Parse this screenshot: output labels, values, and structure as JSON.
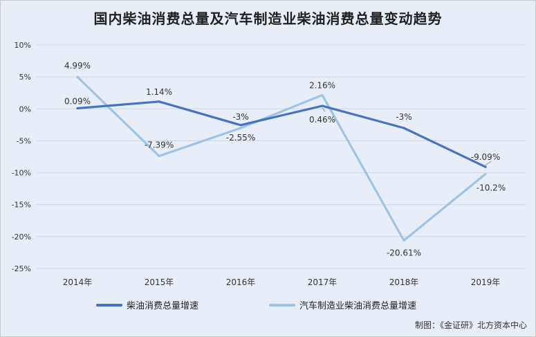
{
  "chart_data": {
    "type": "line",
    "title": "国内柴油消费总量及汽车制造业柴油消费总量变动趋势",
    "categories": [
      "2014年",
      "2015年",
      "2016年",
      "2017年",
      "2018年",
      "2019年"
    ],
    "ylim": [
      -25,
      10
    ],
    "yticks": [
      10,
      5,
      0,
      -5,
      -10,
      -15,
      -20,
      -25
    ],
    "ytick_labels": [
      "10%",
      "5%",
      "0%",
      "-5%",
      "-10%",
      "-15%",
      "-20%",
      "-25%"
    ],
    "grid": true,
    "legend_position": "bottom",
    "series": [
      {
        "name": "柴油消费总量增速",
        "color": "#4472c4",
        "values": [
          0.09,
          1.14,
          -2.55,
          0.46,
          -3.0,
          -9.09
        ],
        "labels": [
          "0.09%",
          "1.14%",
          "-2.55%",
          "0.46%",
          "-3%",
          "-9.09%"
        ]
      },
      {
        "name": "汽车制造业柴油消费总量增速",
        "color": "#9dc3e6",
        "values": [
          4.99,
          -7.39,
          -3.0,
          2.16,
          -20.61,
          -10.2
        ],
        "labels": [
          "4.99%",
          "-7.39%",
          "-3%",
          "2.16%",
          "-20.61%",
          "-10.2%"
        ]
      }
    ]
  },
  "credit": "制图：《金证研》北方资本中心"
}
